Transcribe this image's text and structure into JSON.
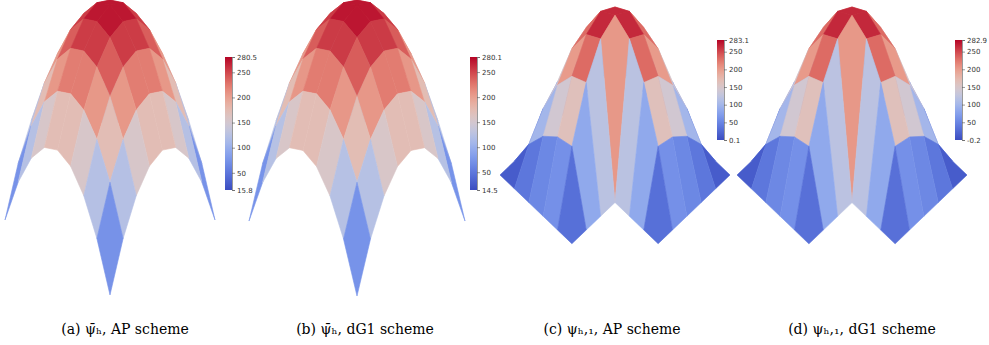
{
  "chart_data": [
    {
      "type": "surface",
      "title": "(a) ψ̄ₕ, AP scheme",
      "zlim": [
        15.8,
        280.5
      ],
      "zticks": [
        15.8,
        50,
        100,
        150,
        200,
        250,
        280.5
      ],
      "z": [
        [
          15.8,
          73.8,
          115.0,
          139.8,
          148.0,
          139.8,
          115.0,
          73.8,
          15.8
        ],
        [
          73.8,
          131.5,
          172.8,
          197.5,
          205.8,
          197.5,
          172.8,
          131.5,
          73.8
        ],
        [
          115.0,
          172.8,
          214.0,
          238.8,
          247.0,
          238.8,
          214.0,
          172.8,
          115.0
        ],
        [
          139.8,
          197.5,
          238.8,
          263.5,
          271.8,
          263.5,
          238.8,
          197.5,
          139.8
        ],
        [
          148.0,
          205.8,
          247.0,
          271.8,
          280.5,
          271.8,
          247.0,
          205.8,
          148.0
        ],
        [
          139.8,
          197.5,
          238.8,
          263.5,
          271.8,
          263.5,
          238.8,
          197.5,
          139.8
        ],
        [
          115.0,
          172.8,
          214.0,
          238.8,
          247.0,
          238.8,
          214.0,
          172.8,
          115.0
        ],
        [
          73.8,
          131.5,
          172.8,
          197.5,
          205.8,
          197.5,
          172.8,
          131.5,
          73.8
        ],
        [
          15.8,
          73.8,
          115.0,
          139.8,
          148.0,
          139.8,
          115.0,
          73.8,
          15.8
        ]
      ]
    },
    {
      "type": "surface",
      "title": "(b) ψ̄ₕ, dG1 scheme",
      "zlim": [
        14.5,
        280.1
      ],
      "zticks": [
        14.5,
        50,
        100,
        150,
        200,
        250,
        280.1
      ],
      "z": [
        [
          14.5,
          73.2,
          114.6,
          139.4,
          147.6,
          139.4,
          114.6,
          73.2,
          14.5
        ],
        [
          73.2,
          131.5,
          172.8,
          197.5,
          205.8,
          197.5,
          172.8,
          131.5,
          73.2
        ],
        [
          114.6,
          172.8,
          214.0,
          238.8,
          247.0,
          238.8,
          214.0,
          172.8,
          114.6
        ],
        [
          139.4,
          197.5,
          238.8,
          263.5,
          271.8,
          263.5,
          238.8,
          197.5,
          139.4
        ],
        [
          147.6,
          205.8,
          247.0,
          271.8,
          280.1,
          271.8,
          247.0,
          205.8,
          147.6
        ],
        [
          139.4,
          197.5,
          238.8,
          263.5,
          271.8,
          263.5,
          238.8,
          197.5,
          139.4
        ],
        [
          114.6,
          172.8,
          214.0,
          238.8,
          247.0,
          238.8,
          214.0,
          172.8,
          114.6
        ],
        [
          73.2,
          131.5,
          172.8,
          197.5,
          205.8,
          197.5,
          172.8,
          131.5,
          73.2
        ],
        [
          14.5,
          73.2,
          114.6,
          139.4,
          147.6,
          139.4,
          114.6,
          73.2,
          14.5
        ]
      ]
    },
    {
      "type": "surface",
      "title": "(c) ψₕ,₁, AP scheme",
      "zlim": [
        0.1,
        283.1
      ],
      "zticks": [
        0.1,
        50,
        100,
        150,
        200,
        250,
        283.1
      ],
      "z": [
        [
          0.1,
          0.1,
          0.1,
          0.1,
          0.1,
          0.1,
          0.1,
          0.1,
          0.1
        ],
        [
          0.1,
          54.2,
          92.9,
          116.1,
          123.8,
          116.1,
          92.9,
          54.2,
          0.1
        ],
        [
          0.1,
          92.9,
          159.2,
          199.0,
          212.3,
          199.0,
          159.2,
          92.9,
          0.1
        ],
        [
          0.1,
          116.1,
          199.0,
          248.7,
          265.3,
          248.7,
          199.0,
          116.1,
          0.1
        ],
        [
          0.1,
          123.8,
          212.3,
          265.3,
          283.1,
          265.3,
          212.3,
          123.8,
          0.1
        ],
        [
          0.1,
          116.1,
          199.0,
          248.7,
          265.3,
          0.1,
          0.1,
          0.1,
          0.1
        ],
        [
          0.1,
          92.9,
          159.2,
          199.0,
          212.3,
          0.1,
          null,
          null,
          null
        ],
        [
          0.1,
          54.2,
          92.9,
          116.1,
          123.8,
          0.1,
          null,
          null,
          null
        ],
        [
          0.1,
          0.1,
          0.1,
          0.1,
          0.1,
          0.1,
          null,
          null,
          null
        ]
      ]
    },
    {
      "type": "surface",
      "title": "(d) ψₕ,₁, dG1 scheme",
      "zlim": [
        -0.2,
        282.9
      ],
      "zticks": [
        -0.2,
        50,
        100,
        150,
        200,
        250,
        282.9
      ],
      "z": [
        [
          0.0,
          0.0,
          0.0,
          0.0,
          0.0,
          0.0,
          0.0,
          0.0,
          0.0
        ],
        [
          0.0,
          54.2,
          92.9,
          116.1,
          123.8,
          116.1,
          92.9,
          54.2,
          0.0
        ],
        [
          0.0,
          92.9,
          159.2,
          199.0,
          212.3,
          199.0,
          159.2,
          92.9,
          0.0
        ],
        [
          0.0,
          116.1,
          199.0,
          248.7,
          265.3,
          248.7,
          199.0,
          116.1,
          0.0
        ],
        [
          0.0,
          123.8,
          212.3,
          265.3,
          282.9,
          265.3,
          212.3,
          123.8,
          0.0
        ],
        [
          0.0,
          116.1,
          199.0,
          248.7,
          265.3,
          -0.2,
          -0.2,
          -0.2,
          -0.2
        ],
        [
          0.0,
          92.9,
          159.2,
          199.0,
          212.3,
          -0.2,
          null,
          null,
          null
        ],
        [
          0.0,
          54.2,
          92.9,
          116.1,
          123.8,
          -0.2,
          null,
          null,
          null
        ],
        [
          0.0,
          0.0,
          0.0,
          0.0,
          0.0,
          -0.2,
          null,
          null,
          null
        ]
      ]
    }
  ]
}
